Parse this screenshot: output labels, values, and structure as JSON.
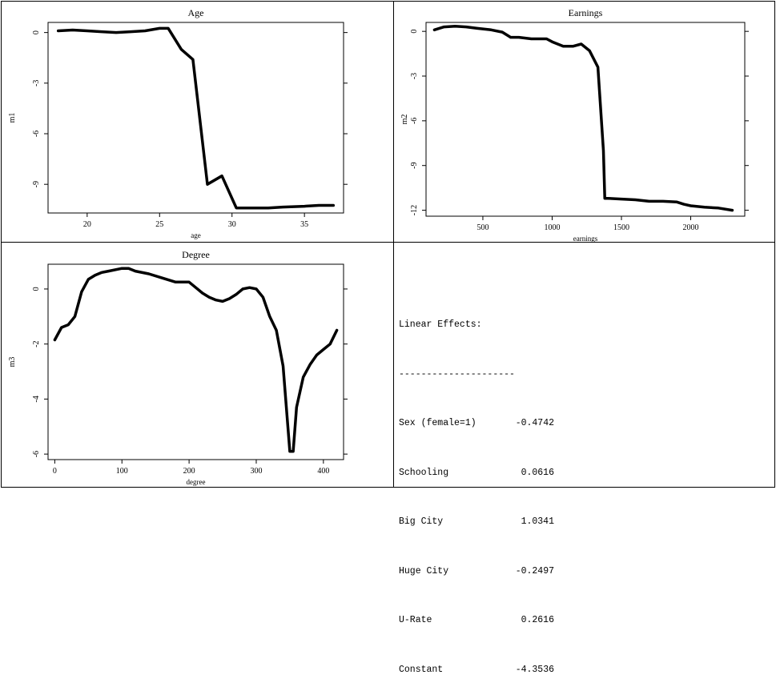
{
  "panels": [
    {
      "title": "Age",
      "chart_data": {
        "type": "line",
        "title": "Age",
        "xlabel": "age",
        "ylabel": "m1",
        "xlim": [
          17.3,
          37.7
        ],
        "ylim": [
          -10.7,
          0.6
        ],
        "xticks": [
          20,
          25,
          30,
          35
        ],
        "yticks": [
          0,
          -3,
          -6,
          -9
        ],
        "x": [
          18,
          19,
          20,
          21,
          22,
          23,
          24,
          25,
          25.6,
          26.5,
          27.3,
          28.3,
          29.3,
          30.3,
          31.5,
          32.5,
          33.5,
          35,
          36,
          37
        ],
        "y": [
          0.1,
          0.15,
          0.1,
          0.05,
          0.0,
          0.05,
          0.1,
          0.25,
          0.25,
          -1.0,
          -1.6,
          -9.0,
          -8.5,
          -10.4,
          -10.4,
          -10.4,
          -10.35,
          -10.3,
          -10.25,
          -10.25
        ]
      }
    },
    {
      "title": "Earnings",
      "chart_data": {
        "type": "line",
        "title": "Earnings",
        "xlabel": "earnings",
        "ylabel": "m2",
        "xlim": [
          90,
          2390
        ],
        "ylim": [
          -12.4,
          0.6
        ],
        "xticks": [
          500,
          1000,
          1500,
          2000
        ],
        "yticks": [
          0,
          -3,
          -6,
          -9,
          -12
        ],
        "x": [
          150,
          220,
          300,
          380,
          460,
          560,
          640,
          700,
          760,
          850,
          960,
          1000,
          1080,
          1150,
          1210,
          1270,
          1330,
          1370,
          1380,
          1400,
          1500,
          1600,
          1700,
          1800,
          1900,
          1950,
          2000,
          2100,
          2200,
          2300
        ],
        "y": [
          0.1,
          0.3,
          0.35,
          0.3,
          0.2,
          0.1,
          -0.05,
          -0.4,
          -0.4,
          -0.5,
          -0.5,
          -0.7,
          -1.0,
          -1.0,
          -0.85,
          -1.3,
          -2.4,
          -8.0,
          -11.2,
          -11.2,
          -11.25,
          -11.3,
          -11.4,
          -11.4,
          -11.45,
          -11.6,
          -11.7,
          -11.8,
          -11.85,
          -12.0
        ]
      }
    },
    {
      "title": "Degree",
      "chart_data": {
        "type": "line",
        "title": "Degree",
        "xlabel": "degree",
        "ylabel": "m3",
        "xlim": [
          -10,
          430
        ],
        "ylim": [
          -6.2,
          0.9
        ],
        "xticks": [
          0,
          100,
          200,
          300,
          400
        ],
        "yticks": [
          0,
          -2,
          -4,
          -6
        ],
        "x": [
          0,
          10,
          20,
          30,
          40,
          50,
          60,
          70,
          80,
          100,
          110,
          120,
          140,
          160,
          180,
          200,
          210,
          220,
          230,
          240,
          250,
          260,
          270,
          280,
          290,
          300,
          310,
          320,
          330,
          340,
          350,
          355,
          360,
          370,
          380,
          390,
          400,
          410,
          420
        ],
        "y": [
          -1.85,
          -1.4,
          -1.3,
          -1.0,
          -0.1,
          0.35,
          0.5,
          0.6,
          0.65,
          0.75,
          0.75,
          0.65,
          0.55,
          0.4,
          0.25,
          0.25,
          0.05,
          -0.15,
          -0.3,
          -0.4,
          -0.45,
          -0.35,
          -0.2,
          0.0,
          0.05,
          0.0,
          -0.3,
          -1.0,
          -1.5,
          -2.8,
          -5.9,
          -5.9,
          -4.3,
          -3.2,
          -2.75,
          -2.4,
          -2.2,
          -2.0,
          -1.5
        ]
      }
    }
  ],
  "linear_effects": {
    "title": "Linear Effects:",
    "separator": "---------------------",
    "rows": [
      {
        "name": "Sex (female=1)",
        "value": "-0.4742"
      },
      {
        "name": "Schooling",
        "value": "0.0616"
      },
      {
        "name": "Big City",
        "value": "1.0341"
      },
      {
        "name": "Huge City",
        "value": "-0.2497"
      },
      {
        "name": "U-Rate",
        "value": "0.2616"
      },
      {
        "name": "Constant",
        "value": "-4.3536"
      }
    ]
  }
}
